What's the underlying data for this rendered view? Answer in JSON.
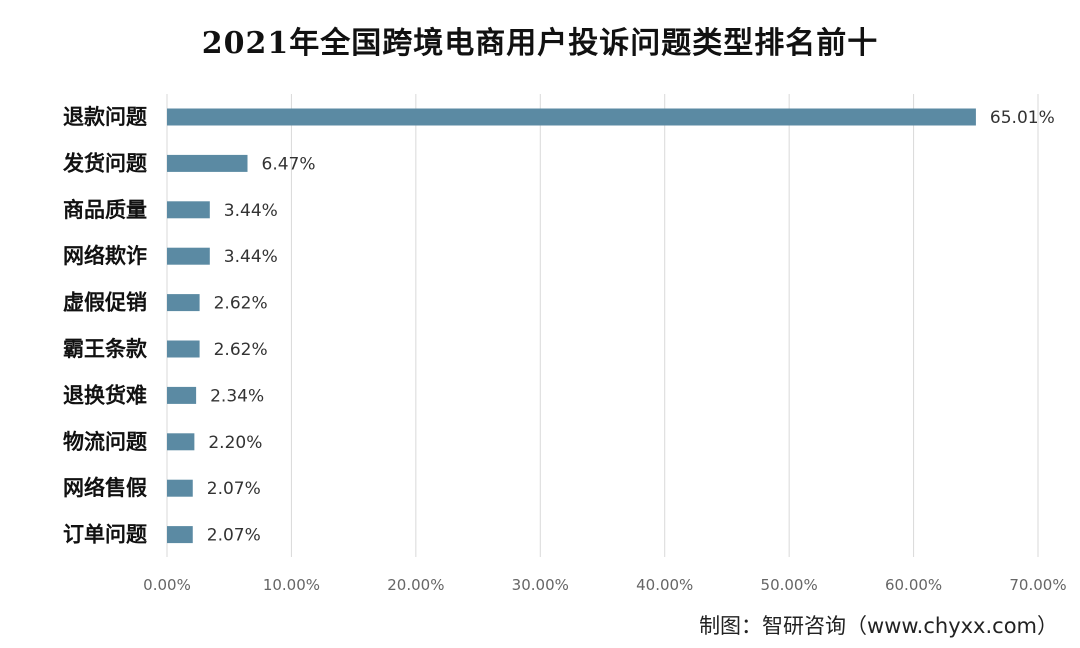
{
  "chart_data": {
    "type": "bar",
    "orientation": "horizontal",
    "title": "2021年全国跨境电商用户投诉问题类型排名前十",
    "categories": [
      "退款问题",
      "发货问题",
      "商品质量",
      "网络欺诈",
      "虚假促销",
      "霸王条款",
      "退换货难",
      "物流问题",
      "网络售假",
      "订单问题"
    ],
    "values": [
      65.01,
      6.47,
      3.44,
      3.44,
      2.62,
      2.62,
      2.34,
      2.2,
      2.07,
      2.07
    ],
    "value_labels": [
      "65.01%",
      "6.47%",
      "3.44%",
      "3.44%",
      "2.62%",
      "2.62%",
      "2.34%",
      "2.20%",
      "2.07%",
      "2.07%"
    ],
    "xlim": [
      0,
      70
    ],
    "x_ticks": [
      0,
      10,
      20,
      30,
      40,
      50,
      60,
      70
    ],
    "x_tick_labels": [
      "0.00%",
      "10.00%",
      "20.00%",
      "30.00%",
      "40.00%",
      "50.00%",
      "60.00%",
      "70.00%"
    ],
    "grid": true,
    "bar_color": "#5b8aa3",
    "xlabel": "",
    "ylabel": ""
  },
  "source_note": "制图：智研咨询（www.chyxx.com）"
}
